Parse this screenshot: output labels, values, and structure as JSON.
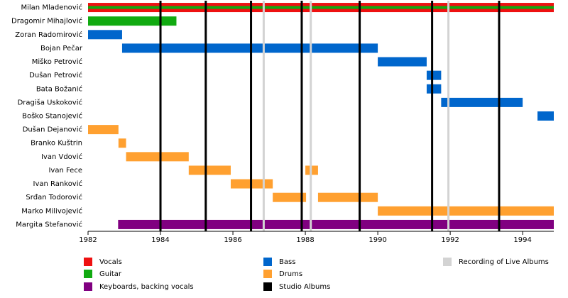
{
  "chart_data": {
    "type": "timeline",
    "categories": [
      "Milan Mladenović",
      "Dragomir Mihajlović",
      "Zoran Radomirović",
      "Bojan Pečar",
      "Miško Petrović",
      "Dušan Petrović",
      "Bata Božanić",
      "Dragiša Uskoković",
      "Boško Stanojević",
      "Dušan Dejanović",
      "Branko Kuštrin",
      "Ivan Vdović",
      "Ivan Fece",
      "Ivan Ranković",
      "Srđan Todorović",
      "Marko Milivojević",
      "Margita Stefanović"
    ],
    "series": [
      {
        "name": "Vocals",
        "color": "#ee1111",
        "values": [
          [
            [
              1982,
              1994.86
            ]
          ],
          null,
          null,
          null,
          null,
          null,
          null,
          null,
          null,
          null,
          null,
          null,
          null,
          null,
          null,
          null,
          null
        ]
      },
      {
        "name": "Guitar",
        "color": "#11aa11",
        "values": [
          [
            [
              1982,
              1994.86
            ]
          ],
          [
            [
              1982,
              1984.44
            ]
          ],
          null,
          null,
          null,
          null,
          null,
          null,
          null,
          null,
          null,
          null,
          null,
          null,
          null,
          null,
          null
        ]
      },
      {
        "name": "Keyboards, backing vocals",
        "color": "#800080",
        "values": [
          null,
          null,
          null,
          null,
          null,
          null,
          null,
          null,
          null,
          null,
          null,
          null,
          null,
          null,
          null,
          null,
          [
            [
              1982.83,
              1994.86
            ]
          ]
        ]
      },
      {
        "name": "Bass",
        "color": "#0066cc",
        "values": [
          null,
          null,
          [
            [
              1982,
              1982.94
            ]
          ],
          [
            [
              1982.94,
              1990
            ]
          ],
          [
            [
              1990,
              1991.35
            ]
          ],
          [
            [
              1991.35,
              1991.75
            ]
          ],
          [
            [
              1991.35,
              1991.75
            ]
          ],
          [
            [
              1991.75,
              1994
            ]
          ],
          [
            [
              1994.41,
              1994.86
            ]
          ],
          null,
          null,
          null,
          null,
          null,
          null,
          null,
          null
        ]
      },
      {
        "name": "Drums",
        "color": "#ffa030",
        "values": [
          null,
          null,
          null,
          null,
          null,
          null,
          null,
          null,
          null,
          [
            [
              1982,
              1982.84
            ]
          ],
          [
            [
              1982.84,
              1983.05
            ]
          ],
          [
            [
              1983.05,
              1984.78
            ]
          ],
          [
            [
              1984.78,
              1985.94
            ],
            [
              1988,
              1988.35
            ]
          ],
          [
            [
              1985.94,
              1987.1
            ]
          ],
          [
            [
              1987.1,
              1988.02
            ],
            [
              1988.35,
              1990
            ]
          ],
          [
            [
              1990,
              1994.86
            ]
          ],
          null
        ]
      }
    ],
    "lines": [
      {
        "name": "Studio Albums",
        "color": "#000000",
        "values": [
          1984,
          1985.25,
          1986.5,
          1987.9,
          1989.5,
          1991.5,
          1993.35
        ]
      },
      {
        "name": "Recording of Live Albums",
        "color": "#d3d3d3",
        "values": [
          1986.85,
          1988.15,
          1991.95
        ]
      }
    ],
    "xlim": [
      1982,
      1994.86
    ],
    "xticks": [
      1982,
      1984,
      1986,
      1988,
      1990,
      1992,
      1994
    ]
  }
}
